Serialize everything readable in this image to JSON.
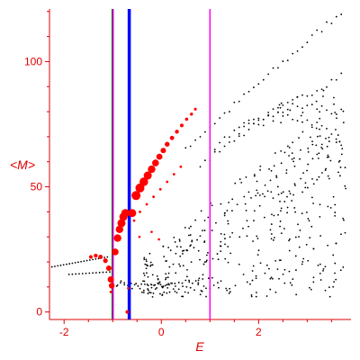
{
  "chart_data": {
    "type": "scatter",
    "xlabel": "E",
    "ylabel": "<M>",
    "xlim": [
      -2.3,
      3.9
    ],
    "ylim": [
      -3,
      121
    ],
    "x_ticks": [
      -2,
      0,
      2
    ],
    "y_ticks": [
      0,
      50,
      100
    ],
    "x_tick_labels": [
      "-2",
      "0",
      "2"
    ],
    "y_tick_labels": [
      "0",
      "50",
      "100"
    ],
    "axis_color": "#e00000",
    "grid": false,
    "vertical_lines": [
      {
        "x": -1.0,
        "color": "#006600",
        "role": "dark-green"
      },
      {
        "x": -0.99,
        "color": "#ff00ff",
        "role": "magenta"
      },
      {
        "x": -0.66,
        "color": "#0000ff",
        "role": "blue"
      },
      {
        "x": 1.0,
        "color": "#ff00ff",
        "role": "magenta"
      }
    ],
    "series": [
      {
        "color": "#ff0000",
        "points": [
          {
            "x": -1.45,
            "y": 22.0,
            "s": 2.0
          },
          {
            "x": -1.35,
            "y": 22.5,
            "s": 2.2
          },
          {
            "x": -1.25,
            "y": 22.0,
            "s": 2.4
          },
          {
            "x": -1.15,
            "y": 20.5,
            "s": 2.6
          },
          {
            "x": -1.08,
            "y": 17.5,
            "s": 3.0
          },
          {
            "x": -1.04,
            "y": 13.0,
            "s": 3.5
          },
          {
            "x": -1.02,
            "y": 10.5,
            "s": 3.2
          },
          {
            "x": -0.95,
            "y": 24.0,
            "s": 3.8
          },
          {
            "x": -0.9,
            "y": 29.5,
            "s": 4.2
          },
          {
            "x": -0.86,
            "y": 33.0,
            "s": 4.2
          },
          {
            "x": -0.82,
            "y": 35.5,
            "s": 4.5
          },
          {
            "x": -0.78,
            "y": 38.0,
            "s": 4.5
          },
          {
            "x": -0.74,
            "y": 39.5,
            "s": 4.5
          },
          {
            "x": -0.6,
            "y": 39.5,
            "s": 4.5
          },
          {
            "x": -0.52,
            "y": 46.5,
            "s": 5.0
          },
          {
            "x": -0.44,
            "y": 49.5,
            "s": 5.0
          },
          {
            "x": -0.36,
            "y": 52.0,
            "s": 4.8
          },
          {
            "x": -0.28,
            "y": 54.5,
            "s": 4.5
          },
          {
            "x": -0.2,
            "y": 57.0,
            "s": 4.2
          },
          {
            "x": -0.12,
            "y": 59.5,
            "s": 3.8
          },
          {
            "x": -0.04,
            "y": 62.0,
            "s": 3.4
          },
          {
            "x": 0.04,
            "y": 64.5,
            "s": 3.0
          },
          {
            "x": 0.12,
            "y": 67.0,
            "s": 2.7
          },
          {
            "x": 0.22,
            "y": 69.5,
            "s": 2.4
          },
          {
            "x": 0.32,
            "y": 72.0,
            "s": 2.2
          },
          {
            "x": 0.42,
            "y": 74.5,
            "s": 2.0
          },
          {
            "x": 0.52,
            "y": 77.0,
            "s": 1.8
          },
          {
            "x": 0.62,
            "y": 79.0,
            "s": 1.7
          },
          {
            "x": 0.7,
            "y": 81.0,
            "s": 1.6
          },
          {
            "x": -0.56,
            "y": 36.5,
            "s": 1.4
          },
          {
            "x": -0.44,
            "y": 40.0,
            "s": 1.4
          },
          {
            "x": -0.3,
            "y": 43.0,
            "s": 1.4
          },
          {
            "x": -0.16,
            "y": 46.0,
            "s": 1.4
          },
          {
            "x": -0.02,
            "y": 49.0,
            "s": 1.4
          },
          {
            "x": 0.12,
            "y": 52.0,
            "s": 1.4
          },
          {
            "x": 0.26,
            "y": 55.0,
            "s": 1.4
          },
          {
            "x": 0.4,
            "y": 58.0,
            "s": 1.4
          },
          {
            "x": -0.45,
            "y": 30.0,
            "s": 1.3
          },
          {
            "x": -0.2,
            "y": 32.0,
            "s": 1.3
          },
          {
            "x": -0.05,
            "y": 29.0,
            "s": 1.3
          },
          {
            "x": -0.7,
            "y": 0.0,
            "s": 2.0
          },
          {
            "x": -0.68,
            "y": 9.5,
            "s": 1.4
          },
          {
            "x": -1.04,
            "y": 8.0,
            "s": 1.4
          }
        ]
      }
    ]
  }
}
